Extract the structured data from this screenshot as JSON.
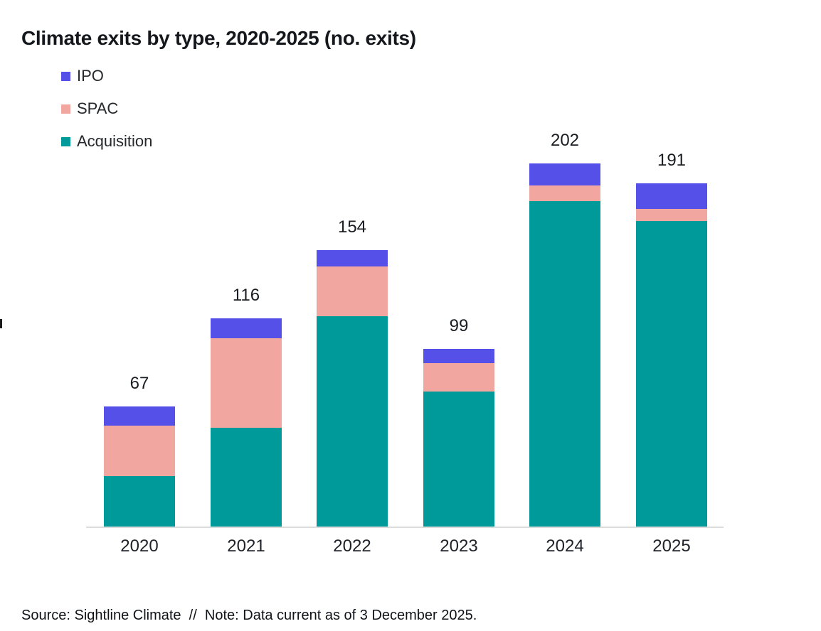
{
  "page": {
    "title": "Climate exits by type, 2020-2025 (no. exits)",
    "source_note": "Source: Sightline Climate  //  Note: Data current as of 3 December 2025."
  },
  "chart_data": {
    "type": "bar",
    "stacked": true,
    "title": "Climate exits by type, 2020-2025 (no. exits)",
    "categories": [
      "2020",
      "2021",
      "2022",
      "2023",
      "2024",
      "2025"
    ],
    "series": [
      {
        "name": "IPO",
        "color": "#5551E8",
        "values": [
          11,
          11,
          9,
          8,
          12,
          14
        ]
      },
      {
        "name": "SPAC",
        "color": "#F1A7A0",
        "values": [
          28,
          50,
          28,
          16,
          9,
          7
        ]
      },
      {
        "name": "Acquisition",
        "color": "#009A9B",
        "values": [
          28,
          55,
          117,
          75,
          181,
          170
        ]
      }
    ],
    "totals": [
      67,
      116,
      154,
      99,
      202,
      191
    ],
    "stack_order_bottom_to_top": [
      "Acquisition",
      "SPAC",
      "IPO"
    ],
    "value_labels": "totals shown above each bar",
    "legend_position": "top-left",
    "xlabel": "",
    "ylabel": "",
    "grid": false,
    "axis_line_color": "#DCDCDC",
    "text_color": "#1A1D21"
  }
}
